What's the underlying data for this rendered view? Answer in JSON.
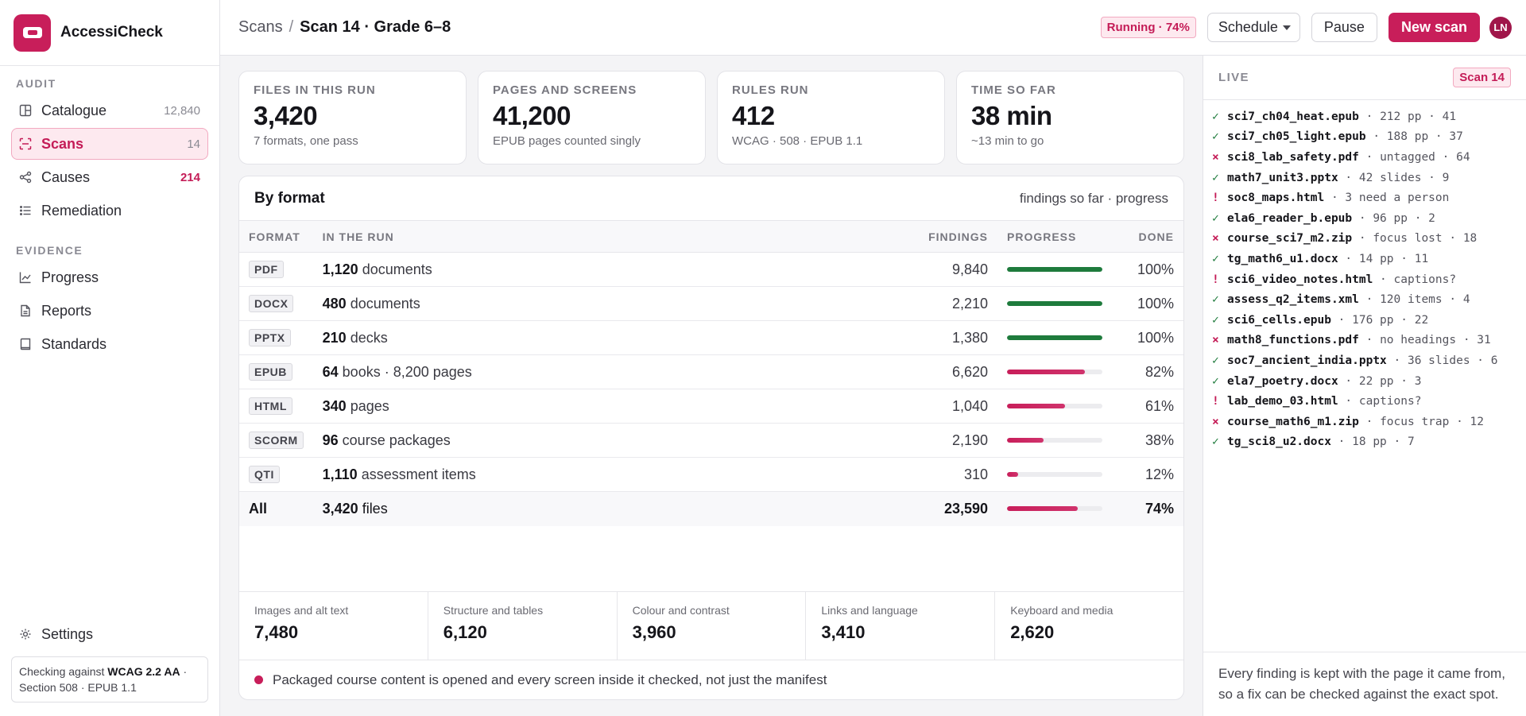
{
  "app": {
    "name": "AccessiCheck"
  },
  "sidebar": {
    "sections": [
      {
        "label": "AUDIT",
        "items": [
          {
            "key": "catalogue",
            "label": "Catalogue",
            "count": "12,840",
            "icon": "catalogue-icon"
          },
          {
            "key": "scans",
            "label": "Scans",
            "count": "14",
            "icon": "scan-icon",
            "active": true
          },
          {
            "key": "causes",
            "label": "Causes",
            "count": "214",
            "icon": "causes-icon",
            "alert": true
          },
          {
            "key": "remediation",
            "label": "Remediation",
            "count": "",
            "icon": "list-icon"
          }
        ]
      },
      {
        "label": "EVIDENCE",
        "items": [
          {
            "key": "progress",
            "label": "Progress",
            "count": "",
            "icon": "chart-icon"
          },
          {
            "key": "reports",
            "label": "Reports",
            "count": "",
            "icon": "document-icon"
          },
          {
            "key": "standards",
            "label": "Standards",
            "count": "",
            "icon": "book-icon"
          }
        ]
      }
    ],
    "settings_label": "Settings",
    "standards_note": {
      "prefix": "Checking against ",
      "bold": "WCAG 2.2 AA",
      "suffix": " · Section 508 · EPUB 1.1"
    }
  },
  "header": {
    "breadcrumb_root": "Scans",
    "breadcrumb_sep": "/",
    "breadcrumb_current": "Scan 14 · Grade 6–8",
    "status": "Running · 74%",
    "schedule_label": "Schedule",
    "pause_label": "Pause",
    "new_scan_label": "New scan",
    "avatar_initials": "LN"
  },
  "stats": [
    {
      "label": "FILES IN THIS RUN",
      "value": "3,420",
      "sub": "7 formats, one pass"
    },
    {
      "label": "PAGES AND SCREENS",
      "value": "41,200",
      "sub": "EPUB pages counted singly"
    },
    {
      "label": "RULES RUN",
      "value": "412",
      "sub": "WCAG · 508 · EPUB 1.1"
    },
    {
      "label": "TIME SO FAR",
      "value": "38 min",
      "sub": "~13 min to go"
    }
  ],
  "by_format": {
    "title": "By format",
    "hint": "findings so far · progress",
    "columns": {
      "format": "FORMAT",
      "in_run": "IN THE RUN",
      "findings": "FINDINGS",
      "progress": "PROGRESS",
      "done": "DONE"
    },
    "rows": [
      {
        "format": "PDF",
        "count": "1,120",
        "unit": "documents",
        "findings": "9,840",
        "progress": 1.0,
        "done": "100%"
      },
      {
        "format": "DOCX",
        "count": "480",
        "unit": "documents",
        "findings": "2,210",
        "progress": 1.0,
        "done": "100%"
      },
      {
        "format": "PPTX",
        "count": "210",
        "unit": "decks",
        "findings": "1,380",
        "progress": 1.0,
        "done": "100%"
      },
      {
        "format": "EPUB",
        "count": "64",
        "unit": "books · 8,200 pages",
        "findings": "6,620",
        "progress": 0.82,
        "done": "82%"
      },
      {
        "format": "HTML",
        "count": "340",
        "unit": "pages",
        "findings": "1,040",
        "progress": 0.61,
        "done": "61%"
      },
      {
        "format": "SCORM",
        "count": "96",
        "unit": "course packages",
        "findings": "2,190",
        "progress": 0.38,
        "done": "38%"
      },
      {
        "format": "QTI",
        "count": "1,110",
        "unit": "assessment items",
        "findings": "310",
        "progress": 0.12,
        "done": "12%"
      }
    ],
    "total": {
      "label": "All",
      "count": "3,420",
      "unit": "files",
      "findings": "23,590",
      "progress": 0.74,
      "done": "74%"
    },
    "categories": [
      {
        "label": "Images and alt text",
        "value": "7,480"
      },
      {
        "label": "Structure and tables",
        "value": "6,120"
      },
      {
        "label": "Colour and contrast",
        "value": "3,960"
      },
      {
        "label": "Links and language",
        "value": "3,410"
      },
      {
        "label": "Keyboard and media",
        "value": "2,620"
      }
    ],
    "note": "Packaged course content is opened and every screen inside it checked, not just the manifest"
  },
  "live": {
    "title": "LIVE",
    "badge": "Scan 14",
    "feed": [
      {
        "status": "ok",
        "mark": "✓",
        "file": "sci7_ch04_heat.epub",
        "detail": " · 212 pp · 41"
      },
      {
        "status": "ok",
        "mark": "✓",
        "file": "sci7_ch05_light.epub",
        "detail": " · 188 pp · 37"
      },
      {
        "status": "fail",
        "mark": "×",
        "file": "sci8_lab_safety.pdf",
        "detail": " · untagged · 64"
      },
      {
        "status": "ok",
        "mark": "✓",
        "file": "math7_unit3.pptx",
        "detail": " · 42 slides · 9"
      },
      {
        "status": "warn",
        "mark": "!",
        "file": "soc8_maps.html",
        "detail": " · 3 need a person"
      },
      {
        "status": "ok",
        "mark": "✓",
        "file": "ela6_reader_b.epub",
        "detail": " · 96 pp · 2"
      },
      {
        "status": "fail",
        "mark": "×",
        "file": "course_sci7_m2.zip",
        "detail": " · focus lost · 18"
      },
      {
        "status": "ok",
        "mark": "✓",
        "file": "tg_math6_u1.docx",
        "detail": " · 14 pp · 11"
      },
      {
        "status": "warn",
        "mark": "!",
        "file": "sci6_video_notes.html",
        "detail": " · captions?"
      },
      {
        "status": "ok",
        "mark": "✓",
        "file": "assess_q2_items.xml",
        "detail": " · 120 items · 4"
      },
      {
        "status": "ok",
        "mark": "✓",
        "file": "sci6_cells.epub",
        "detail": " · 176 pp · 22"
      },
      {
        "status": "fail",
        "mark": "×",
        "file": "math8_functions.pdf",
        "detail": " · no headings · 31"
      },
      {
        "status": "ok",
        "mark": "✓",
        "file": "soc7_ancient_india.pptx",
        "detail": " · 36 slides · 6"
      },
      {
        "status": "ok",
        "mark": "✓",
        "file": "ela7_poetry.docx",
        "detail": " · 22 pp · 3"
      },
      {
        "status": "warn",
        "mark": "!",
        "file": "lab_demo_03.html",
        "detail": " · captions?"
      },
      {
        "status": "fail",
        "mark": "×",
        "file": "course_math6_m1.zip",
        "detail": " · focus trap · 12"
      },
      {
        "status": "ok",
        "mark": "✓",
        "file": "tg_sci8_u2.docx",
        "detail": " · 18 pp · 7"
      }
    ],
    "footer": "Every finding is kept with the page it came from, so a fix can be checked against the exact spot."
  },
  "colors": {
    "accent": "#c81e5a",
    "complete": "#1e7b3c",
    "partial": "#d0336c"
  }
}
